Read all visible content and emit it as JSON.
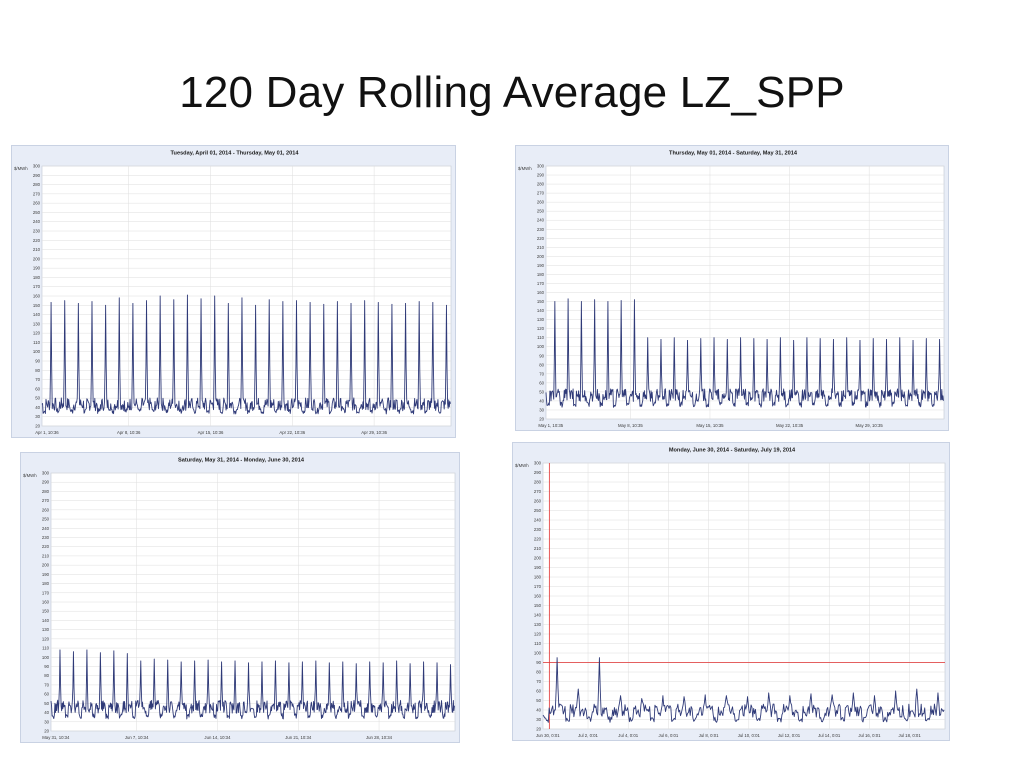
{
  "slide": {
    "title": "120 Day Rolling Average LZ_SPP"
  },
  "colors": {
    "series": "#2f3a78",
    "reference_line": "#e03030",
    "grid": "#dedede",
    "panel_bg": "#e8edf7"
  },
  "chart_data": [
    {
      "type": "line",
      "title": "Tuesday, April 01, 2014 - Thursday, May 01, 2014",
      "ylabel": "$/MWh",
      "ylim": [
        20,
        300
      ],
      "y_ticks": [
        20,
        30,
        40,
        50,
        60,
        70,
        80,
        90,
        100,
        110,
        120,
        130,
        140,
        150,
        160,
        170,
        180,
        190,
        200,
        210,
        220,
        230,
        240,
        250,
        260,
        270,
        280,
        290,
        300
      ],
      "x_tick_labels": [
        "Apr 1, 10:36",
        "Apr 8, 10:36",
        "Apr 15, 10:36",
        "Apr 22, 10:36",
        "Apr 29, 10:36"
      ],
      "grid": true,
      "days": 30,
      "series": [
        {
          "daily_peak": [
            153,
            155,
            152,
            154,
            150,
            158,
            152,
            155,
            160,
            156,
            161,
            157,
            160,
            152,
            158,
            150,
            156,
            154,
            155,
            153,
            151,
            154,
            152,
            155,
            153,
            151,
            152,
            154,
            153,
            150
          ],
          "daily_floor": 33,
          "typical_level": 42
        }
      ]
    },
    {
      "type": "line",
      "title": "Thursday, May 01, 2014 - Saturday, May 31, 2014",
      "ylabel": "$/MWh",
      "ylim": [
        20,
        300
      ],
      "y_ticks": [
        20,
        30,
        40,
        50,
        60,
        70,
        80,
        90,
        100,
        110,
        120,
        130,
        140,
        150,
        160,
        170,
        180,
        190,
        200,
        210,
        220,
        230,
        240,
        250,
        260,
        270,
        280,
        290,
        300
      ],
      "x_tick_labels": [
        "May 1, 10:35",
        "May 8, 10:35",
        "May 15, 10:35",
        "May 22, 10:35",
        "May 29, 10:35"
      ],
      "grid": true,
      "days": 30,
      "series": [
        {
          "daily_peak": [
            150,
            153,
            150,
            152,
            150,
            151,
            152,
            110,
            108,
            110,
            107,
            109,
            110,
            108,
            110,
            109,
            108,
            110,
            107,
            110,
            109,
            108,
            110,
            107,
            109,
            108,
            110,
            107,
            109,
            108
          ],
          "daily_floor": 33,
          "typical_level": 45
        }
      ]
    },
    {
      "type": "line",
      "title": "Saturday, May 31, 2014 - Monday, June 30, 2014",
      "ylabel": "$/MWh",
      "ylim": [
        20,
        300
      ],
      "y_ticks": [
        20,
        30,
        40,
        50,
        60,
        70,
        80,
        90,
        100,
        110,
        120,
        130,
        140,
        150,
        160,
        170,
        180,
        190,
        200,
        210,
        220,
        230,
        240,
        250,
        260,
        270,
        280,
        290,
        300
      ],
      "x_tick_labels": [
        "May 31, 10:34",
        "Jun 7, 10:34",
        "Jun 14, 10:34",
        "Jun 21, 10:34",
        "Jun 28, 10:34"
      ],
      "grid": true,
      "days": 30,
      "series": [
        {
          "daily_peak": [
            108,
            106,
            108,
            105,
            107,
            104,
            96,
            98,
            97,
            95,
            96,
            97,
            95,
            96,
            94,
            95,
            96,
            94,
            95,
            96,
            94,
            95,
            93,
            95,
            94,
            96,
            93,
            95,
            94,
            92
          ],
          "daily_floor": 33,
          "typical_level": 45
        }
      ]
    },
    {
      "type": "line",
      "title": "Monday, June 30, 2014 - Saturday, July 19, 2014",
      "ylabel": "$/MWh",
      "ylim": [
        20,
        300
      ],
      "y_ticks": [
        20,
        30,
        40,
        50,
        60,
        70,
        80,
        90,
        100,
        110,
        120,
        130,
        140,
        150,
        160,
        170,
        180,
        190,
        200,
        210,
        220,
        230,
        240,
        250,
        260,
        270,
        280,
        290,
        300
      ],
      "x_tick_labels": [
        "Jun 30, 0:01",
        "Jul 2, 0:01",
        "Jul 4, 0:01",
        "Jul 6, 0:01",
        "Jul 8, 0:01",
        "Jul 10, 0:01",
        "Jul 12, 0:01",
        "Jul 14, 0:01",
        "Jul 16, 0:01",
        "Jul 18, 0:01"
      ],
      "grid": true,
      "days": 19,
      "reference_lines": {
        "horizontal_y": 90,
        "vertical_x_day": 0.3
      },
      "series": [
        {
          "daily_peak": [
            95,
            62,
            95,
            55,
            52,
            55,
            54,
            56,
            55,
            54,
            58,
            55,
            57,
            56,
            58,
            55,
            60,
            62,
            58
          ],
          "daily_floor": 27,
          "typical_level": 38
        }
      ]
    }
  ]
}
